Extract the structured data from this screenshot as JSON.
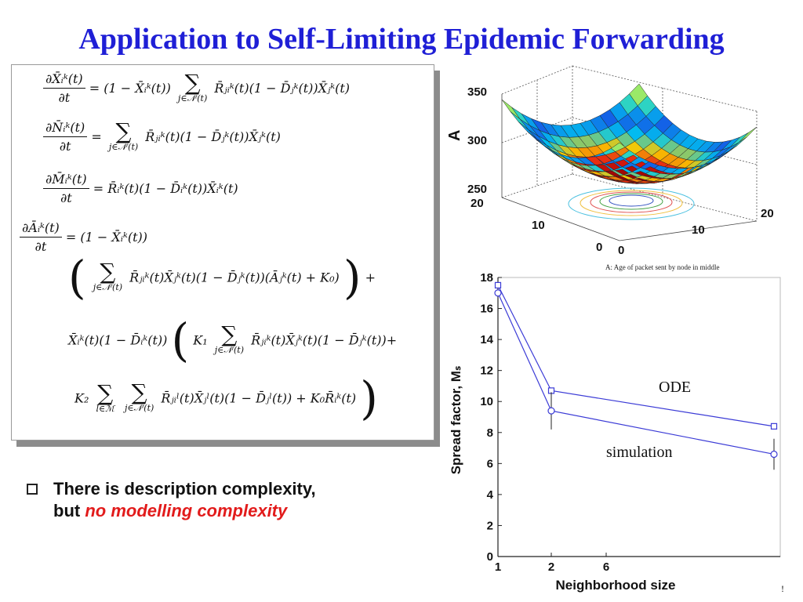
{
  "slide": {
    "title": "Application to Self-Limiting Epidemic Forwarding",
    "bullet": {
      "text_line1": "There is description complexity,",
      "text_line2_prefix": "but ",
      "text_line2_emph": "no modelling complexity"
    },
    "page_mark": "!"
  },
  "colors": {
    "title": "#1f1fd6",
    "emphasis": "#e21b1b",
    "series": "#3b3bd6"
  },
  "equations": {
    "eq1_lhs_num": "∂X̄ᵢᵏ(t)",
    "eq1_den": "∂t",
    "eq1_rhs_a": "= (1 − X̄ᵢᵏ(t))",
    "eq1_sum_sub": "j∈𝒩ⁱ(t)",
    "eq1_rhs_b": "R̄ⱼᵢᵏ(t)(1 − D̄ⱼᵏ(t))X̄ⱼᵏ(t)",
    "eq2_lhs_num": "∂N̄ᵢᵏ(t)",
    "eq2_den": "∂t",
    "eq2_eq": "=",
    "eq2_sum_sub": "j∈𝒩ⁱ(t)",
    "eq2_rhs": "R̄ⱼᵢᵏ(t)(1 − D̄ⱼᵏ(t))X̄ⱼᵏ(t)",
    "eq3_lhs_num": "∂M̄ᵢᵏ(t)",
    "eq3_den": "∂t",
    "eq3_rhs": "= R̄ᵢᵏ(t)(1 − D̄ᵢᵏ(t))X̄ᵢᵏ(t)",
    "eq4_lhs_num": "∂Āᵢᵏ(t)",
    "eq4_den": "∂t",
    "eq4_rhs": "= (1 − X̄ᵢᵏ(t))",
    "eq5_sum_sub": "j∈𝒩ⁱ(t)",
    "eq5_body": "R̄ⱼᵢᵏ(t)X̄ⱼᵏ(t)(1 − D̄ⱼᵏ(t))(Āⱼᵏ(t) + K₀)",
    "eq5_tail": "+",
    "eq6_pre": "X̄ᵢᵏ(t)(1 − D̄ᵢᵏ(t))",
    "eq6_k1": "K₁",
    "eq6_sum_sub": "j∈𝒩ⁱ(t)",
    "eq6_body": "R̄ⱼᵢᵏ(t)X̄ⱼᵏ(t)(1 − D̄ⱼᵏ(t))+",
    "eq7_k2": "K₂",
    "eq7_sum1_sub": "l∈ℳ",
    "eq7_sum2_sub": "j∈𝒩ⁱ(t)",
    "eq7_body": "R̄ⱼᵢˡ(t)X̄ⱼˡ(t)(1 − D̄ⱼˡ(t)) + K₀R̄ᵢᵏ(t)"
  },
  "surface_plot": {
    "zlabel": "A",
    "z_ticks": [
      "350",
      "300",
      "250"
    ],
    "x_ticks": [
      "20",
      "10",
      "0"
    ],
    "y_ticks": [
      "0",
      "10",
      "20"
    ],
    "caption": "A: Age of packet sent by node in middle"
  },
  "chart_data": {
    "type": "line",
    "xlabel": "Neighborhood size",
    "ylabel": "Spread factor, Mₛ",
    "ylim": [
      0,
      18
    ],
    "y_ticks": [
      "0",
      "2",
      "4",
      "6",
      "8",
      "10",
      "12",
      "14",
      "16",
      "18"
    ],
    "x_tick_labels": [
      "1",
      "2",
      "6"
    ],
    "x": [
      1,
      2,
      6
    ],
    "series": [
      {
        "name": "ODE",
        "marker": "square",
        "values": [
          17.5,
          10.7,
          8.4
        ]
      },
      {
        "name": "simulation",
        "marker": "circle",
        "values": [
          17.0,
          9.4,
          6.6
        ],
        "error": [
          null,
          1.2,
          1.0
        ]
      }
    ]
  }
}
